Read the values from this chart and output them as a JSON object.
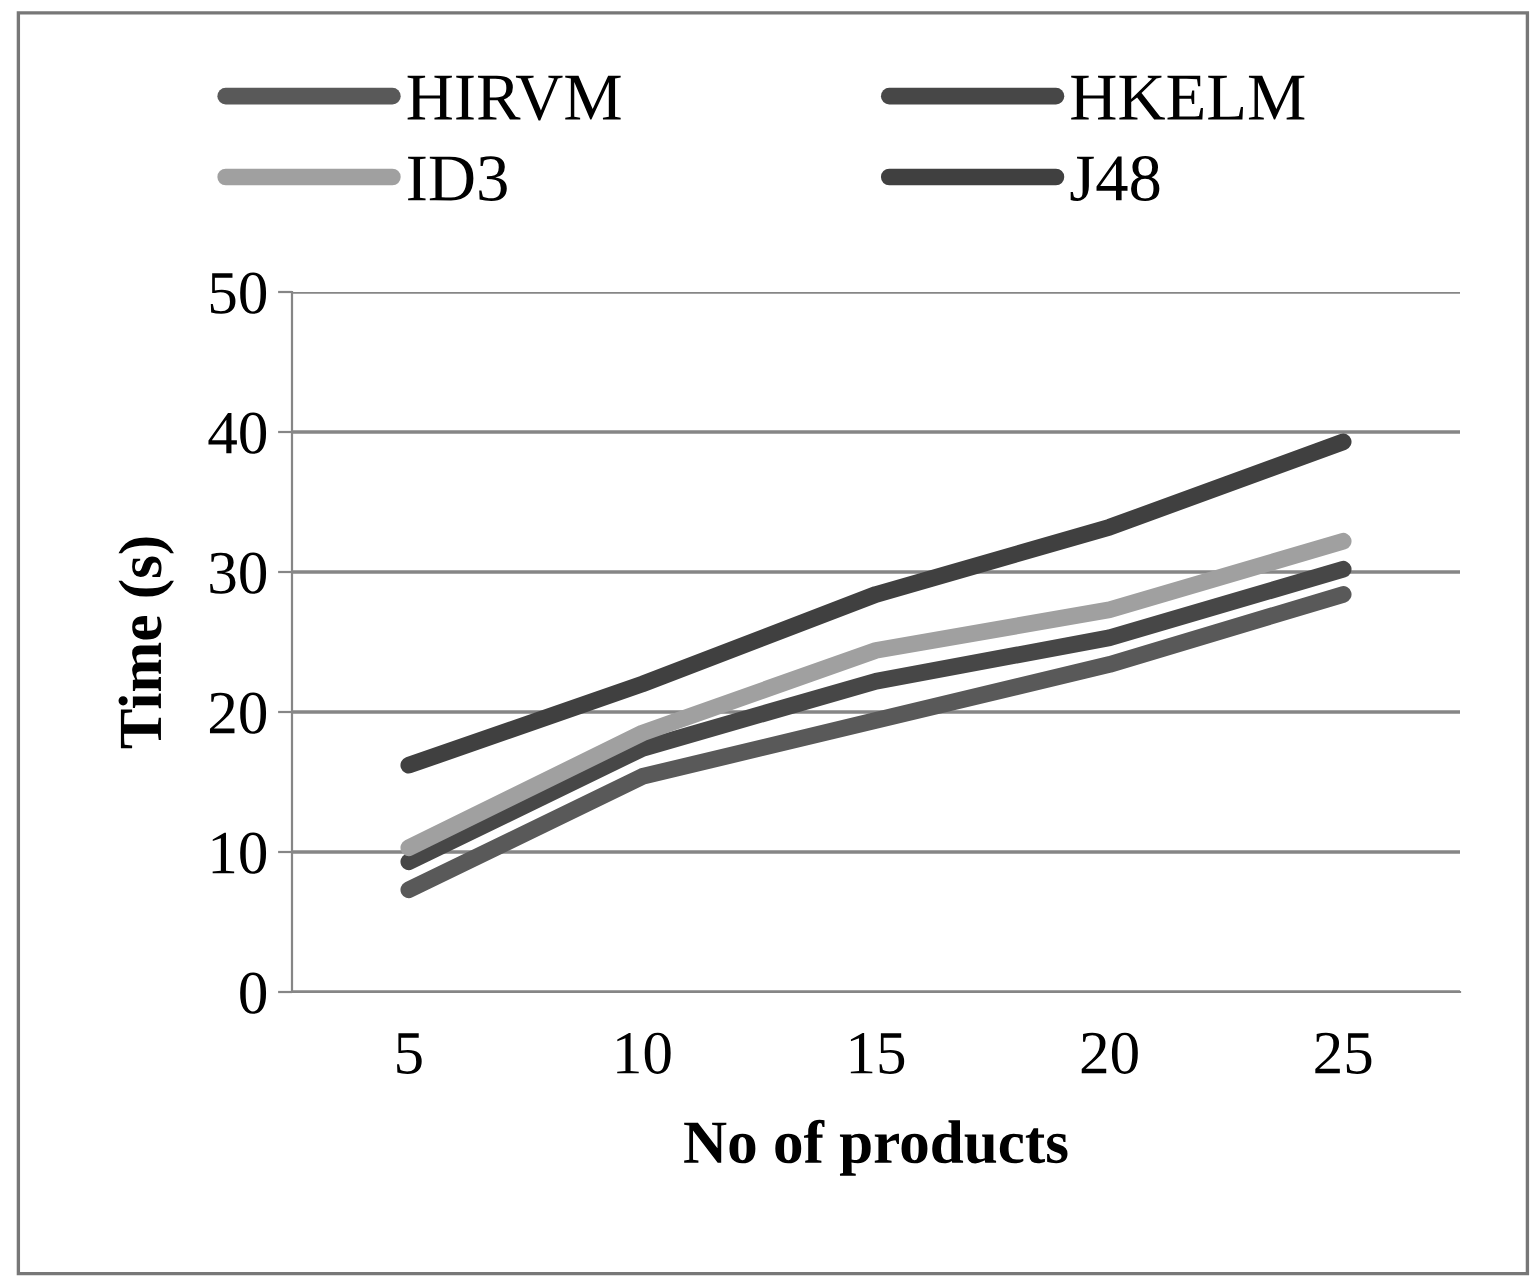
{
  "chart_data": {
    "type": "line",
    "xlabel": "No of products",
    "ylabel": "Time (s)",
    "categories": [
      "5",
      "10",
      "15",
      "20",
      "25"
    ],
    "series": [
      {
        "name": "HIRVM",
        "color": "#595959",
        "values": [
          7.3,
          15.4,
          19.4,
          23.4,
          28.4
        ]
      },
      {
        "name": "HKELM",
        "color": "#474747",
        "values": [
          9.3,
          17.4,
          22.2,
          25.3,
          30.2
        ]
      },
      {
        "name": "ID3",
        "color": "#a0a0a0",
        "values": [
          10.3,
          18.5,
          24.4,
          27.3,
          32.2
        ]
      },
      {
        "name": "J48",
        "color": "#404040",
        "values": [
          16.2,
          22,
          28.4,
          33.2,
          39.3
        ]
      }
    ],
    "ylim": [
      0,
      50
    ],
    "yticks": [
      0,
      10,
      20,
      30,
      40,
      50
    ],
    "grid": "y",
    "legend": "top",
    "marker": "none",
    "line_style": "solid"
  }
}
